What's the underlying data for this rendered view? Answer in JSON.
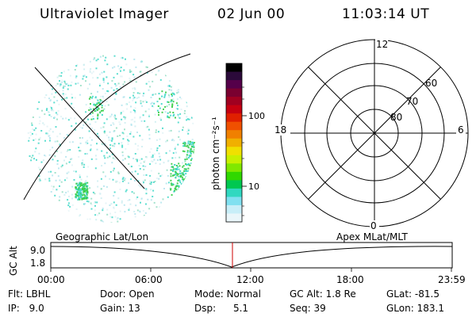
{
  "header": {
    "title": "Ultraviolet Imager",
    "date": "02 Jun 00",
    "time": "11:03:14 UT"
  },
  "colorbar": {
    "units_label": "photon cm⁻²s⁻¹",
    "tick_labels": [
      "100",
      "10"
    ],
    "colors": [
      "#000000",
      "#2b0a3a",
      "#55004a",
      "#7a0030",
      "#a00020",
      "#c60010",
      "#e02000",
      "#f05000",
      "#f08000",
      "#f0b000",
      "#f0e000",
      "#c8f000",
      "#80e800",
      "#30d800",
      "#00c850",
      "#30d8c0",
      "#80e0f0",
      "#c8eef8",
      "#eaf6fa"
    ]
  },
  "geo_image": {
    "speckle_color": "#40d8c8",
    "dense_color": "#3ccf4a"
  },
  "polar_plot": {
    "mlt_labels": {
      "top": "12",
      "left": "18",
      "right": "6",
      "bottom": "0"
    },
    "lat_labels": [
      "60",
      "70",
      "80"
    ]
  },
  "timeline": {
    "left_label": "Geographic Lat/Lon",
    "right_label": "Apex MLat/MLT",
    "y_axis_title": "GC Alt",
    "y_ticks": [
      "9.0",
      "1.8"
    ],
    "x_ticks": [
      "00:00",
      "06:00",
      "12:00",
      "18:00",
      "23:59"
    ],
    "marker_color": "#cc0000"
  },
  "footer": {
    "row1": [
      {
        "label": "Flt:",
        "value": "LBHL"
      },
      {
        "label": "Door:",
        "value": "Open"
      },
      {
        "label": "Mode:",
        "value": "Normal"
      },
      {
        "label": "GC Alt:",
        "value": "1.8 Re"
      },
      {
        "label": "GLat:",
        "value": "-81.5"
      }
    ],
    "row2": [
      {
        "label": "IP:",
        "value": "9.0"
      },
      {
        "label": "Gain:",
        "value": "13"
      },
      {
        "label": "Dsp:",
        "value": "5.1"
      },
      {
        "label": "Seq:",
        "value": "39"
      },
      {
        "label": "GLon:",
        "value": "183.1"
      }
    ]
  }
}
